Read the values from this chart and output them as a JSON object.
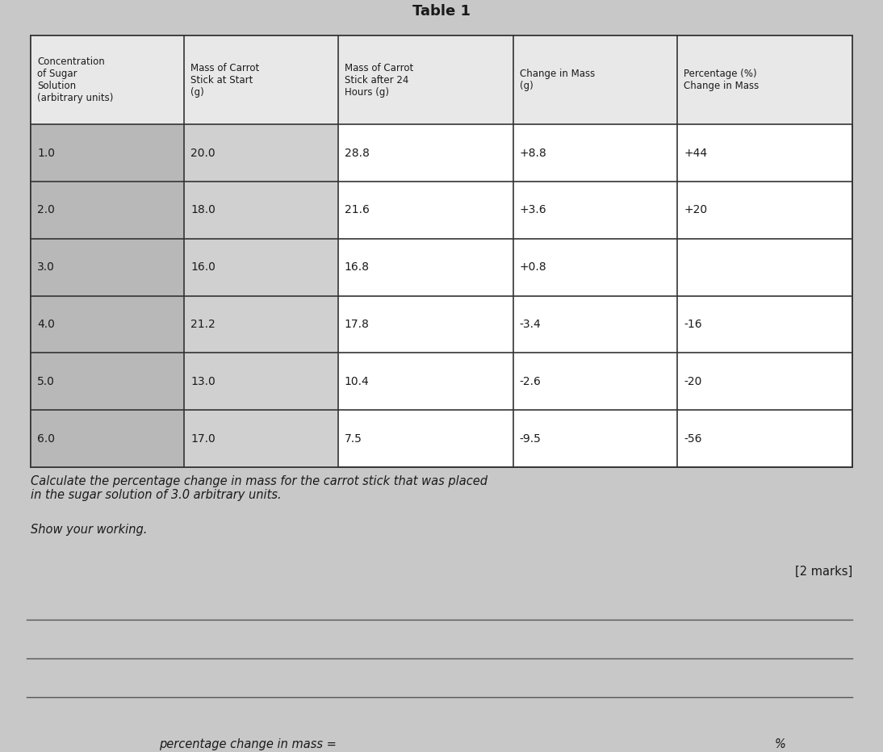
{
  "title": "Table 1",
  "col_headers": [
    "Concentration\nof Sugar\nSolution\n(arbitrary units)",
    "Mass of Carrot\nStick at Start\n(g)",
    "Mass of Carrot\nStick after 24\nHours (g)",
    "Change in Mass\n(g)",
    "Percentage (%)\nChange in Mass"
  ],
  "rows": [
    [
      "1.0",
      "20.0",
      "28.8",
      "+8.8",
      "+44"
    ],
    [
      "2.0",
      "18.0",
      "21.6",
      "+3.6",
      "+20"
    ],
    [
      "3.0",
      "16.0",
      "16.8",
      "+0.8",
      ""
    ],
    [
      "4.0",
      "21.2",
      "17.8",
      "-3.4",
      "-16"
    ],
    [
      "5.0",
      "13.0",
      "10.4",
      "-2.6",
      "-20"
    ],
    [
      "6.0",
      "17.0",
      "7.5",
      "-9.5",
      "-56"
    ]
  ],
  "question_text": "Calculate the percentage change in mass for the carrot stick that was placed\nin the sugar solution of 3.0 arbitrary units.",
  "show_working_text": "Show your working.",
  "marks_text": "[2 marks]",
  "answer_label": "percentage change in mass = ",
  "answer_unit": "%",
  "bg_color": "#c8c8c8",
  "line_color": "#333333",
  "text_color": "#1a1a1a",
  "answer_line_color": "#555555"
}
